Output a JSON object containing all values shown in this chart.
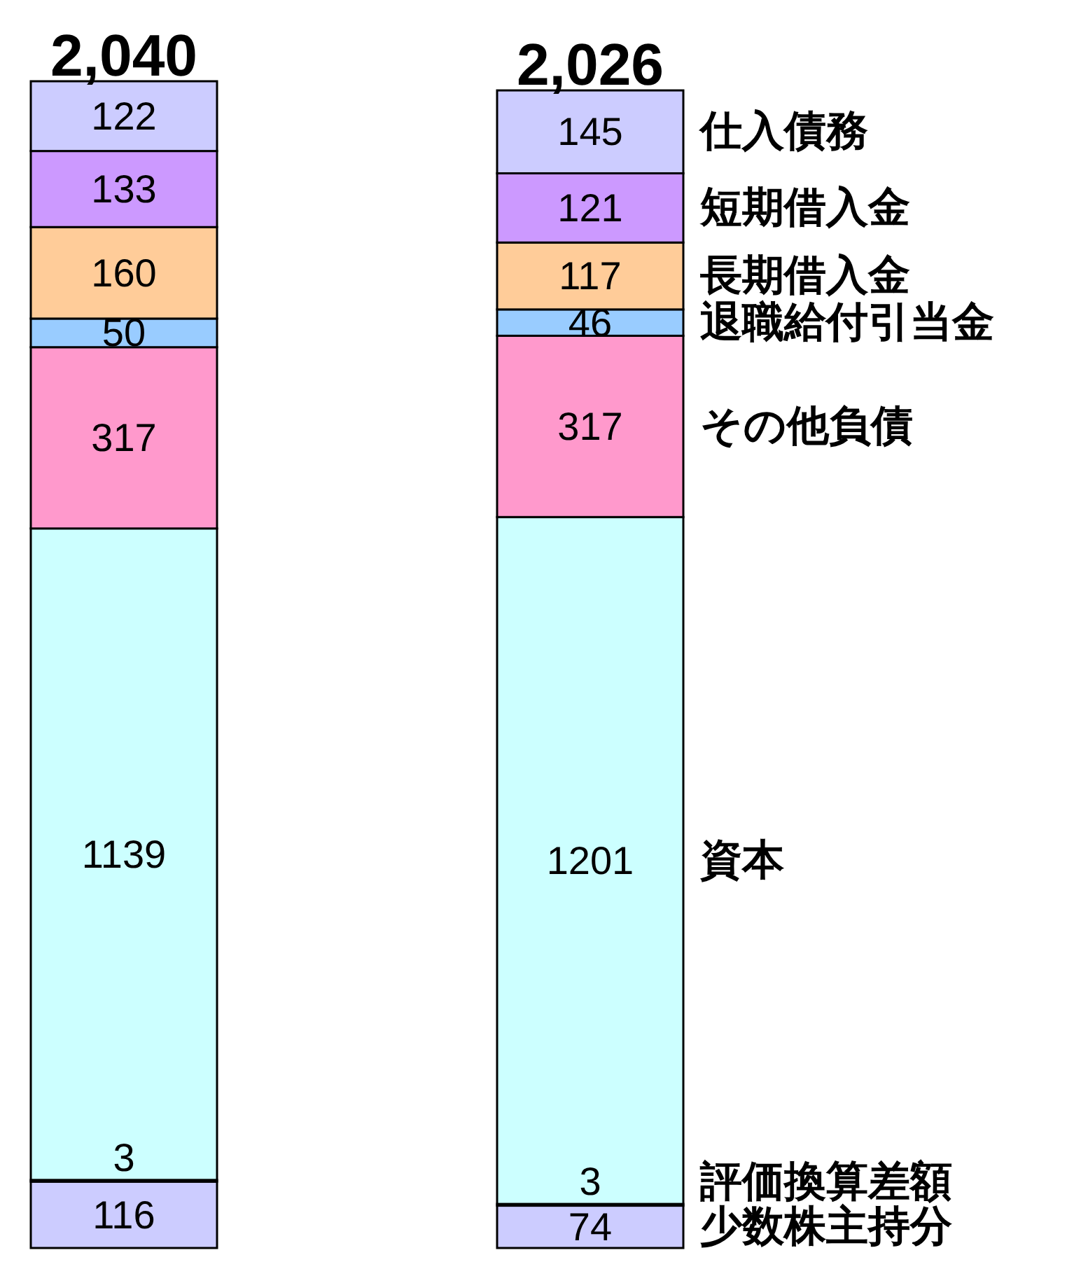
{
  "chart_data": {
    "type": "bar",
    "stacked": true,
    "categories": [
      null,
      null
    ],
    "data_labels": true,
    "totals": [
      "2,040",
      "2,026"
    ],
    "series": [
      {
        "name": "少数株主持分",
        "color": "#ccccff",
        "values": [
          116,
          74
        ]
      },
      {
        "name": "評価換算差額",
        "color": "#ccffff",
        "values": [
          3,
          3
        ]
      },
      {
        "name": "資本",
        "color": "#ccffff",
        "values": [
          1139,
          1201
        ]
      },
      {
        "name": "その他負債",
        "color": "#ff99cc",
        "values": [
          317,
          317
        ]
      },
      {
        "name": "退職給付引当金",
        "color": "#99ccff",
        "values": [
          50,
          46
        ]
      },
      {
        "name": "長期借入金",
        "color": "#ffcc99",
        "values": [
          160,
          117
        ]
      },
      {
        "name": "短期借入金",
        "color": "#cc99ff",
        "values": [
          133,
          121
        ]
      },
      {
        "name": "仕入債務",
        "color": "#ccccff",
        "values": [
          122,
          145
        ]
      }
    ]
  }
}
